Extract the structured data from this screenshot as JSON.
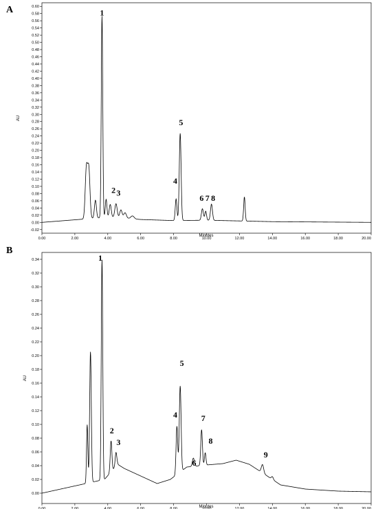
{
  "chart_data": [
    {
      "type": "line",
      "panel_label": "A",
      "xlabel": "Minutes",
      "ylabel": "AU",
      "xlim": [
        0,
        20
      ],
      "ylim": [
        -0.03,
        0.61
      ],
      "x_ticks": [
        0,
        2,
        4,
        6,
        8,
        10,
        12,
        14,
        16,
        18,
        20
      ],
      "x_tick_labels": [
        "0.00",
        "2.00",
        "4.00",
        "6.00",
        "8.00",
        "10.00",
        "12.00",
        "14.00",
        "16.00",
        "18.00",
        "20.00"
      ],
      "y_ticks": [
        -0.02,
        0.0,
        0.02,
        0.04,
        0.06,
        0.08,
        0.1,
        0.12,
        0.14,
        0.16,
        0.18,
        0.2,
        0.22,
        0.24,
        0.26,
        0.28,
        0.3,
        0.32,
        0.34,
        0.36,
        0.38,
        0.4,
        0.42,
        0.44,
        0.46,
        0.48,
        0.5,
        0.52,
        0.54,
        0.56,
        0.58,
        0.6
      ],
      "y_tick_labels": [
        "-0.02",
        "0.00",
        "0.02",
        "0.04",
        "0.06",
        "0.08",
        "0.10",
        "0.12",
        "0.14",
        "0.16",
        "0.18",
        "0.20",
        "0.22",
        "0.24",
        "0.26",
        "0.28",
        "0.30",
        "0.32",
        "0.34",
        "0.36",
        "0.38",
        "0.40",
        "0.42",
        "0.44",
        "0.46",
        "0.48",
        "0.50",
        "0.52",
        "0.54",
        "0.56",
        "0.58",
        "0.60"
      ],
      "baseline": [
        [
          0,
          0.0
        ],
        [
          4.2,
          0.015
        ],
        [
          6.0,
          0.008
        ],
        [
          8.0,
          0.005
        ],
        [
          10.0,
          0.006
        ],
        [
          14.0,
          0.002
        ],
        [
          20.0,
          0.0
        ]
      ],
      "peaks": [
        {
          "t": 2.7,
          "h": 0.138,
          "w": 0.07
        },
        {
          "t": 2.85,
          "h": 0.135,
          "w": 0.07
        },
        {
          "t": 3.25,
          "h": 0.05,
          "w": 0.06
        },
        {
          "t": 3.65,
          "h": 0.56,
          "w": 0.045
        },
        {
          "t": 3.9,
          "h": 0.05,
          "w": 0.05
        },
        {
          "t": 4.15,
          "h": 0.035,
          "w": 0.06
        },
        {
          "t": 4.5,
          "h": 0.038,
          "w": 0.07
        },
        {
          "t": 4.8,
          "h": 0.022,
          "w": 0.07
        },
        {
          "t": 5.05,
          "h": 0.015,
          "w": 0.08
        },
        {
          "t": 5.5,
          "h": 0.008,
          "w": 0.1
        },
        {
          "t": 8.15,
          "h": 0.06,
          "w": 0.05
        },
        {
          "t": 8.4,
          "h": 0.242,
          "w": 0.055
        },
        {
          "t": 9.75,
          "h": 0.032,
          "w": 0.06
        },
        {
          "t": 9.95,
          "h": 0.025,
          "w": 0.05
        },
        {
          "t": 10.3,
          "h": 0.045,
          "w": 0.06
        },
        {
          "t": 12.3,
          "h": 0.067,
          "w": 0.045
        }
      ],
      "peak_labels": [
        {
          "text": "1",
          "x": 3.65,
          "y": 0.575
        },
        {
          "text": "2",
          "x": 4.35,
          "y": 0.082
        },
        {
          "text": "3",
          "x": 4.65,
          "y": 0.074
        },
        {
          "text": "4",
          "x": 8.1,
          "y": 0.108
        },
        {
          "text": "5",
          "x": 8.45,
          "y": 0.27
        },
        {
          "text": "6",
          "x": 9.7,
          "y": 0.06
        },
        {
          "text": "7",
          "x": 10.05,
          "y": 0.06
        },
        {
          "text": "8",
          "x": 10.4,
          "y": 0.06
        }
      ]
    },
    {
      "type": "line",
      "panel_label": "B",
      "xlabel": "Minutes",
      "ylabel": "AU",
      "xlim": [
        0,
        20
      ],
      "ylim": [
        -0.015,
        0.35
      ],
      "x_ticks": [
        0,
        2,
        4,
        6,
        8,
        10,
        12,
        14,
        16,
        18,
        20
      ],
      "x_tick_labels": [
        "0.00",
        "2.00",
        "4.00",
        "6.00",
        "8.00",
        "10.00",
        "12.00",
        "14.00",
        "16.00",
        "18.00",
        "20.00"
      ],
      "y_ticks": [
        0.0,
        0.02,
        0.04,
        0.06,
        0.08,
        0.1,
        0.12,
        0.14,
        0.16,
        0.18,
        0.2,
        0.22,
        0.24,
        0.26,
        0.28,
        0.3,
        0.32,
        0.34
      ],
      "y_tick_labels": [
        "0.00",
        "0.02",
        "0.04",
        "0.06",
        "0.08",
        "0.10",
        "0.12",
        "0.14",
        "0.16",
        "0.18",
        "0.20",
        "0.22",
        "0.24",
        "0.26",
        "0.28",
        "0.30",
        "0.32",
        "0.34"
      ],
      "baseline": [
        [
          0,
          0.0
        ],
        [
          3.8,
          0.02
        ],
        [
          4.6,
          0.042
        ],
        [
          5.0,
          0.036
        ],
        [
          6.0,
          0.025
        ],
        [
          7.0,
          0.014
        ],
        [
          7.8,
          0.02
        ],
        [
          8.8,
          0.038
        ],
        [
          10.0,
          0.041
        ],
        [
          11.0,
          0.043
        ],
        [
          11.8,
          0.048
        ],
        [
          12.6,
          0.042
        ],
        [
          13.5,
          0.028
        ],
        [
          14.5,
          0.012
        ],
        [
          16.0,
          0.006
        ],
        [
          18.0,
          0.003
        ],
        [
          20.0,
          0.002
        ]
      ],
      "peaks": [
        {
          "t": 2.75,
          "h": 0.085,
          "w": 0.04
        },
        {
          "t": 2.95,
          "h": 0.19,
          "w": 0.05
        },
        {
          "t": 3.65,
          "h": 0.32,
          "w": 0.045
        },
        {
          "t": 4.2,
          "h": 0.045,
          "w": 0.05
        },
        {
          "t": 4.5,
          "h": 0.02,
          "w": 0.05
        },
        {
          "t": 8.2,
          "h": 0.07,
          "w": 0.05
        },
        {
          "t": 8.4,
          "h": 0.125,
          "w": 0.055
        },
        {
          "t": 9.2,
          "h": 0.012,
          "w": 0.06
        },
        {
          "t": 9.7,
          "h": 0.052,
          "w": 0.05
        },
        {
          "t": 9.92,
          "h": 0.018,
          "w": 0.045
        },
        {
          "t": 13.4,
          "h": 0.012,
          "w": 0.07
        },
        {
          "t": 14.0,
          "h": 0.004,
          "w": 0.06
        }
      ],
      "peak_labels": [
        {
          "text": "1",
          "x": 3.55,
          "y": 0.338
        },
        {
          "text": "2",
          "x": 4.25,
          "y": 0.087
        },
        {
          "text": "3",
          "x": 4.65,
          "y": 0.07
        },
        {
          "text": "4",
          "x": 8.1,
          "y": 0.11
        },
        {
          "text": "5",
          "x": 8.5,
          "y": 0.185
        },
        {
          "text": "6",
          "x": 9.25,
          "y": 0.04
        },
        {
          "text": "7",
          "x": 9.8,
          "y": 0.105
        },
        {
          "text": "8",
          "x": 10.25,
          "y": 0.072
        },
        {
          "text": "9",
          "x": 13.6,
          "y": 0.052
        }
      ]
    }
  ]
}
